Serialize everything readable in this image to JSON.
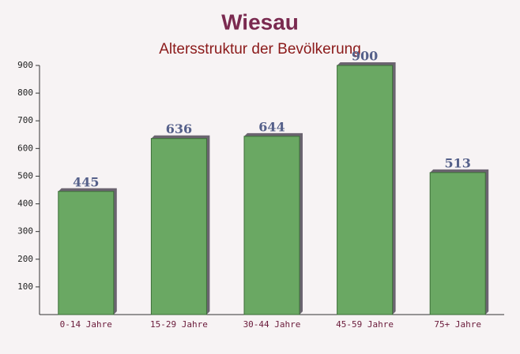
{
  "chart_data": {
    "type": "bar",
    "title": "Wiesau",
    "subtitle": "Altersstruktur der Bevölkerung",
    "categories": [
      "0-14 Jahre",
      "15-29 Jahre",
      "30-44 Jahre",
      "45-59 Jahre",
      "75+ Jahre"
    ],
    "values": [
      445,
      636,
      644,
      900,
      513
    ],
    "color": "#6aa863",
    "ylim": [
      0,
      900
    ],
    "yticks": [
      100,
      200,
      300,
      400,
      500,
      600,
      700,
      800,
      900
    ],
    "grid": false
  }
}
